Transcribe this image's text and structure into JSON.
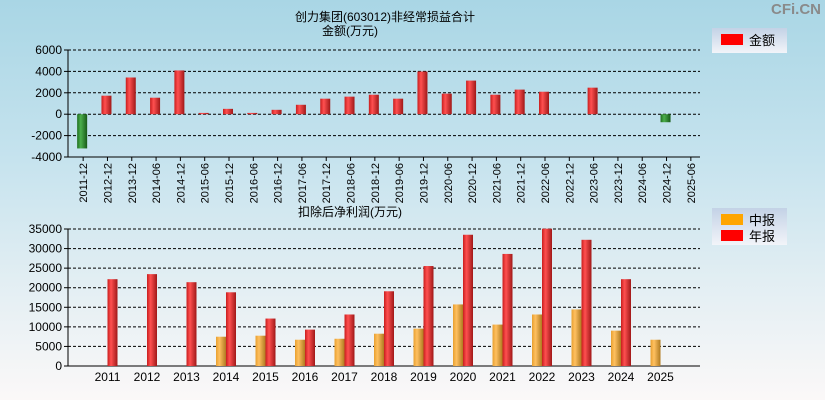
{
  "watermark": "CFi.CN",
  "colors": {
    "positive": "#ff2a2a",
    "negative": "#2e8b2e",
    "interim": "#f5a623",
    "annual": "#ff2a2a"
  },
  "chart_data": [
    {
      "type": "bar",
      "title": "创力集团(603012)非经常损益合计",
      "ylabel": "金额(万元)",
      "legend": [
        {
          "name": "金额",
          "color": "#ff0000"
        }
      ],
      "legend_position": "top-right",
      "ylim": [
        -4000,
        6000
      ],
      "yticks": [
        6000,
        4000,
        2000,
        0,
        -2000,
        -4000
      ],
      "grid": true,
      "categories": [
        "2011-12",
        "2012-12",
        "2013-12",
        "2014-06",
        "2014-12",
        "2015-06",
        "2015-12",
        "2016-06",
        "2016-12",
        "2017-06",
        "2017-12",
        "2018-06",
        "2018-12",
        "2019-06",
        "2019-12",
        "2020-06",
        "2020-12",
        "2021-06",
        "2021-12",
        "2022-06",
        "2022-12",
        "2023-06",
        "2023-12",
        "2024-06",
        "2024-12",
        "2025-06"
      ],
      "values": [
        -3200,
        1730,
        3430,
        1540,
        4090,
        120,
        500,
        120,
        410,
        880,
        1450,
        1640,
        1820,
        1450,
        3990,
        1920,
        3140,
        1820,
        2300,
        2100,
        null,
        2480,
        null,
        null,
        -750,
        null
      ]
    },
    {
      "type": "bar",
      "title": "扣除后净利润(万元)",
      "legend": [
        {
          "name": "中报",
          "color": "#ffa500"
        },
        {
          "name": "年报",
          "color": "#ff0000"
        }
      ],
      "legend_position": "top-right",
      "ylim": [
        0,
        35000
      ],
      "yticks": [
        35000,
        30000,
        25000,
        20000,
        15000,
        10000,
        5000,
        0
      ],
      "grid": true,
      "categories": [
        "2011",
        "2012",
        "2013",
        "2014",
        "2015",
        "2016",
        "2017",
        "2018",
        "2019",
        "2020",
        "2021",
        "2022",
        "2023",
        "2024",
        "2025"
      ],
      "series": [
        {
          "name": "中报",
          "values": [
            null,
            null,
            null,
            7480,
            7740,
            6710,
            6960,
            8250,
            9540,
            15730,
            10580,
            13160,
            14450,
            9030,
            6710
          ]
        },
        {
          "name": "年报",
          "values": [
            22180,
            23470,
            21410,
            18830,
            12120,
            9290,
            13160,
            19090,
            25540,
            33530,
            28630,
            35080,
            32240,
            22180,
            null
          ]
        }
      ]
    }
  ]
}
